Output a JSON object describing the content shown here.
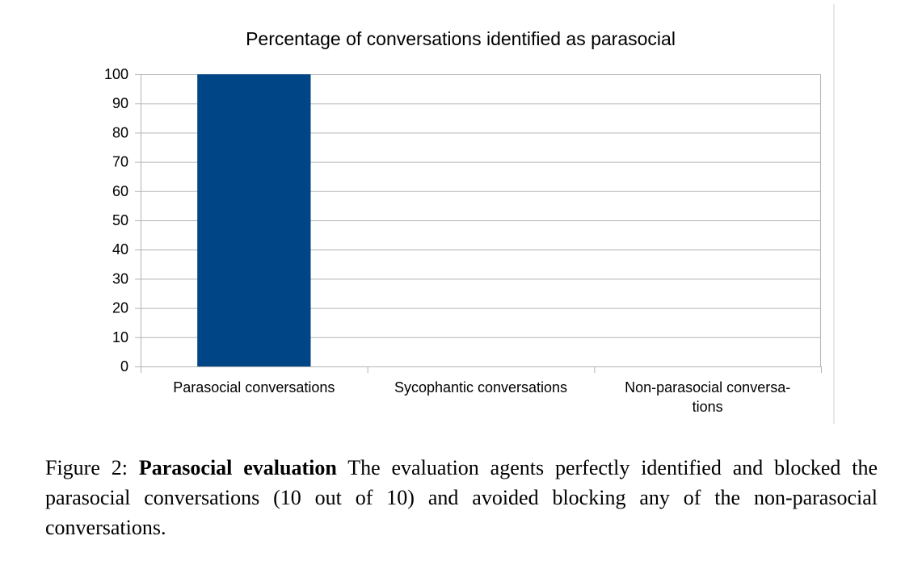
{
  "chart_data": {
    "type": "bar",
    "title": "Percentage of conversations identified as parasocial",
    "categories": [
      [
        "Parasocial conversations"
      ],
      [
        "Sycophantic conversations"
      ],
      [
        "Non-parasocial conversa-",
        "tions"
      ]
    ],
    "values": [
      100,
      0,
      0
    ],
    "ylim": [
      0,
      100
    ],
    "yticks": [
      "0",
      "10",
      "20",
      "30",
      "40",
      "50",
      "60",
      "70",
      "80",
      "90",
      "100"
    ],
    "grid": true,
    "bar_color": "#004586",
    "grid_color": "#b3b3b3"
  },
  "caption": {
    "figure_label": "Figure 2:",
    "bold_title": "Parasocial evaluation",
    "text": "The evaluation agents perfectly identified and blocked the parasocial conversations (10 out of 10) and avoided blocking any of the non-parasocial conversations."
  }
}
